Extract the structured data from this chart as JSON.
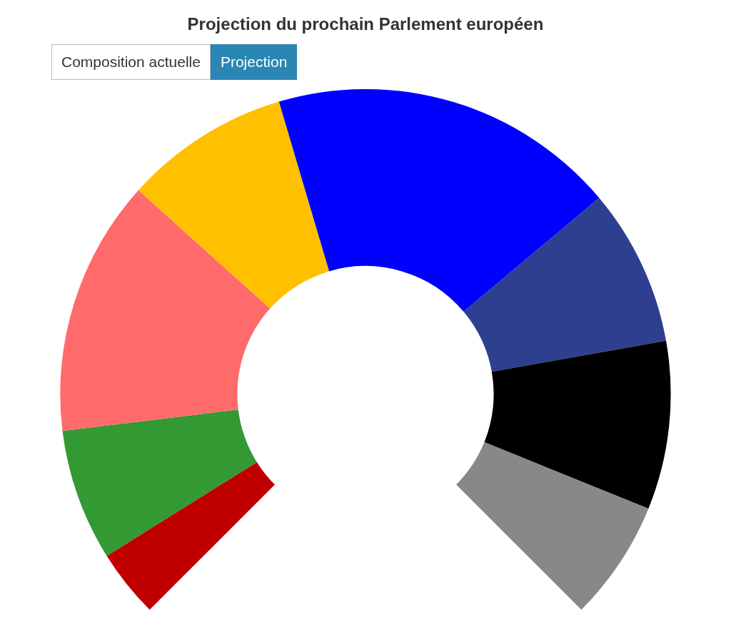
{
  "chart_data": {
    "type": "donut",
    "title": "Projection du prochain Parlement européen",
    "annotations": [
      "Composition actuelle",
      "Projection"
    ],
    "categories": [
      null,
      null,
      null,
      null,
      null,
      null,
      null,
      null
    ],
    "values": [
      4.8,
      9.3,
      18.1,
      11.7,
      24.6,
      11.1,
      11.9,
      8.5
    ],
    "colors": [
      "#c00000",
      "#339933",
      "#ff6b6b",
      "#ffc000",
      "#0000ff",
      "#2e3f8f",
      "#000000",
      "#888888"
    ]
  }
}
